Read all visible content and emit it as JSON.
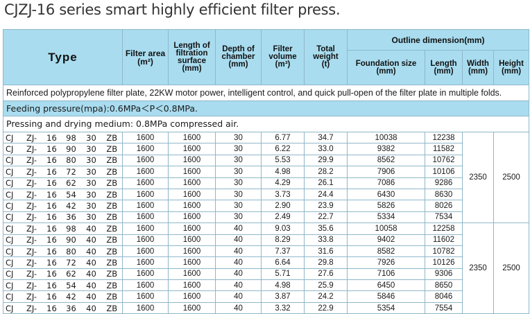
{
  "title": "CJZJ-16 series smart highly efficient filter press.",
  "headers": {
    "type": "Type",
    "filter_area": "Filter area",
    "filter_area_unit": "(m²)",
    "filtration_surface": "Length of filtration surface",
    "filtration_surface_unit": "(mm)",
    "depth": "Depth of chamber",
    "depth_unit": "(mm)",
    "volume": "Filter volume",
    "volume_unit": "(m³)",
    "weight": "Total weight",
    "weight_unit": "(t)",
    "outline": "Outline dimension(mm)",
    "foundation": "Foundation size",
    "foundation_unit": "(mm)",
    "length": "Length",
    "length_unit": "(mm)",
    "width": "Width",
    "width_unit": "(mm)",
    "height": "Height",
    "height_unit": "(mm)"
  },
  "notes": {
    "line1": "Reinforced polypropylene filter plate, 22KW motor power, intelligent control, and quick pull-open of the filter plate in multiple folds.",
    "line2": "Feeding pressure(mpa):0.6MPa＜P＜0.8MPa.",
    "line3": "Pressing and drying medium: 0.8MPa compressed air."
  },
  "groups": [
    {
      "width": "2350",
      "height": "2500",
      "rows": [
        {
          "c1": "CJ",
          "c2": "ZJ-",
          "c3": "16",
          "c4": "98",
          "c5": "30",
          "c6": "ZB",
          "area": "1600",
          "surface": "1600",
          "depth": "30",
          "volume": "6.77",
          "weight": "34.7",
          "foundation": "10038",
          "length": "12238"
        },
        {
          "c1": "CJ",
          "c2": "ZJ-",
          "c3": "16",
          "c4": "90",
          "c5": "30",
          "c6": "ZB",
          "area": "1600",
          "surface": "1600",
          "depth": "30",
          "volume": "6.22",
          "weight": "33.0",
          "foundation": "9382",
          "length": "11582"
        },
        {
          "c1": "CJ",
          "c2": "ZJ-",
          "c3": "16",
          "c4": "80",
          "c5": "30",
          "c6": "ZB",
          "area": "1600",
          "surface": "1600",
          "depth": "30",
          "volume": "5.53",
          "weight": "29.9",
          "foundation": "8562",
          "length": "10762"
        },
        {
          "c1": "CJ",
          "c2": "ZJ-",
          "c3": "16",
          "c4": "72",
          "c5": "30",
          "c6": "ZB",
          "area": "1600",
          "surface": "1600",
          "depth": "30",
          "volume": "4.98",
          "weight": "28.2",
          "foundation": "7906",
          "length": "10106"
        },
        {
          "c1": "CJ",
          "c2": "ZJ-",
          "c3": "16",
          "c4": "62",
          "c5": "30",
          "c6": "ZB",
          "area": "1600",
          "surface": "1600",
          "depth": "30",
          "volume": "4.29",
          "weight": "26.1",
          "foundation": "7086",
          "length": "9286"
        },
        {
          "c1": "CJ",
          "c2": "ZJ-",
          "c3": "16",
          "c4": "54",
          "c5": "30",
          "c6": "ZB",
          "area": "1600",
          "surface": "1600",
          "depth": "30",
          "volume": "3.73",
          "weight": "24.4",
          "foundation": "6430",
          "length": "8630"
        },
        {
          "c1": "CJ",
          "c2": "ZJ-",
          "c3": "16",
          "c4": "42",
          "c5": "30",
          "c6": "ZB",
          "area": "1600",
          "surface": "1600",
          "depth": "30",
          "volume": "2.90",
          "weight": "23.9",
          "foundation": "5826",
          "length": "8026"
        },
        {
          "c1": "CJ",
          "c2": "ZJ-",
          "c3": "16",
          "c4": "36",
          "c5": "30",
          "c6": "ZB",
          "area": "1600",
          "surface": "1600",
          "depth": "30",
          "volume": "2.49",
          "weight": "22.7",
          "foundation": "5334",
          "length": "7534"
        }
      ]
    },
    {
      "width": "2350",
      "height": "2500",
      "rows": [
        {
          "c1": "CJ",
          "c2": "ZJ-",
          "c3": "16",
          "c4": "98",
          "c5": "40",
          "c6": "ZB",
          "area": "1600",
          "surface": "1600",
          "depth": "40",
          "volume": "9.03",
          "weight": "35.6",
          "foundation": "10058",
          "length": "12258"
        },
        {
          "c1": "CJ",
          "c2": "ZJ-",
          "c3": "16",
          "c4": "90",
          "c5": "40",
          "c6": "ZB",
          "area": "1600",
          "surface": "1600",
          "depth": "40",
          "volume": "8.29",
          "weight": "33.8",
          "foundation": "9402",
          "length": "11602"
        },
        {
          "c1": "CJ",
          "c2": "ZJ-",
          "c3": "16",
          "c4": "80",
          "c5": "40",
          "c6": "ZB",
          "area": "1600",
          "surface": "1600",
          "depth": "40",
          "volume": "7.37",
          "weight": "31.6",
          "foundation": "8582",
          "length": "10782"
        },
        {
          "c1": "CJ",
          "c2": "ZJ-",
          "c3": "16",
          "c4": "72",
          "c5": "40",
          "c6": "ZB",
          "area": "1600",
          "surface": "1600",
          "depth": "40",
          "volume": "6.64",
          "weight": "29.8",
          "foundation": "7926",
          "length": "10126"
        },
        {
          "c1": "CJ",
          "c2": "ZJ-",
          "c3": "16",
          "c4": "62",
          "c5": "40",
          "c6": "ZB",
          "area": "1600",
          "surface": "1600",
          "depth": "40",
          "volume": "5.71",
          "weight": "27.6",
          "foundation": "7106",
          "length": "9306"
        },
        {
          "c1": "CJ",
          "c2": "ZJ-",
          "c3": "16",
          "c4": "54",
          "c5": "40",
          "c6": "ZB",
          "area": "1600",
          "surface": "1600",
          "depth": "40",
          "volume": "4.98",
          "weight": "25.9",
          "foundation": "6450",
          "length": "8650"
        },
        {
          "c1": "CJ",
          "c2": "ZJ-",
          "c3": "16",
          "c4": "42",
          "c5": "40",
          "c6": "ZB",
          "area": "1600",
          "surface": "1600",
          "depth": "40",
          "volume": "3.87",
          "weight": "24.2",
          "foundation": "5846",
          "length": "8046"
        },
        {
          "c1": "CJ",
          "c2": "ZJ-",
          "c3": "16",
          "c4": "36",
          "c5": "40",
          "c6": "ZB",
          "area": "1600",
          "surface": "1600",
          "depth": "40",
          "volume": "3.32",
          "weight": "22.9",
          "foundation": "5354",
          "length": "7554"
        }
      ]
    }
  ]
}
